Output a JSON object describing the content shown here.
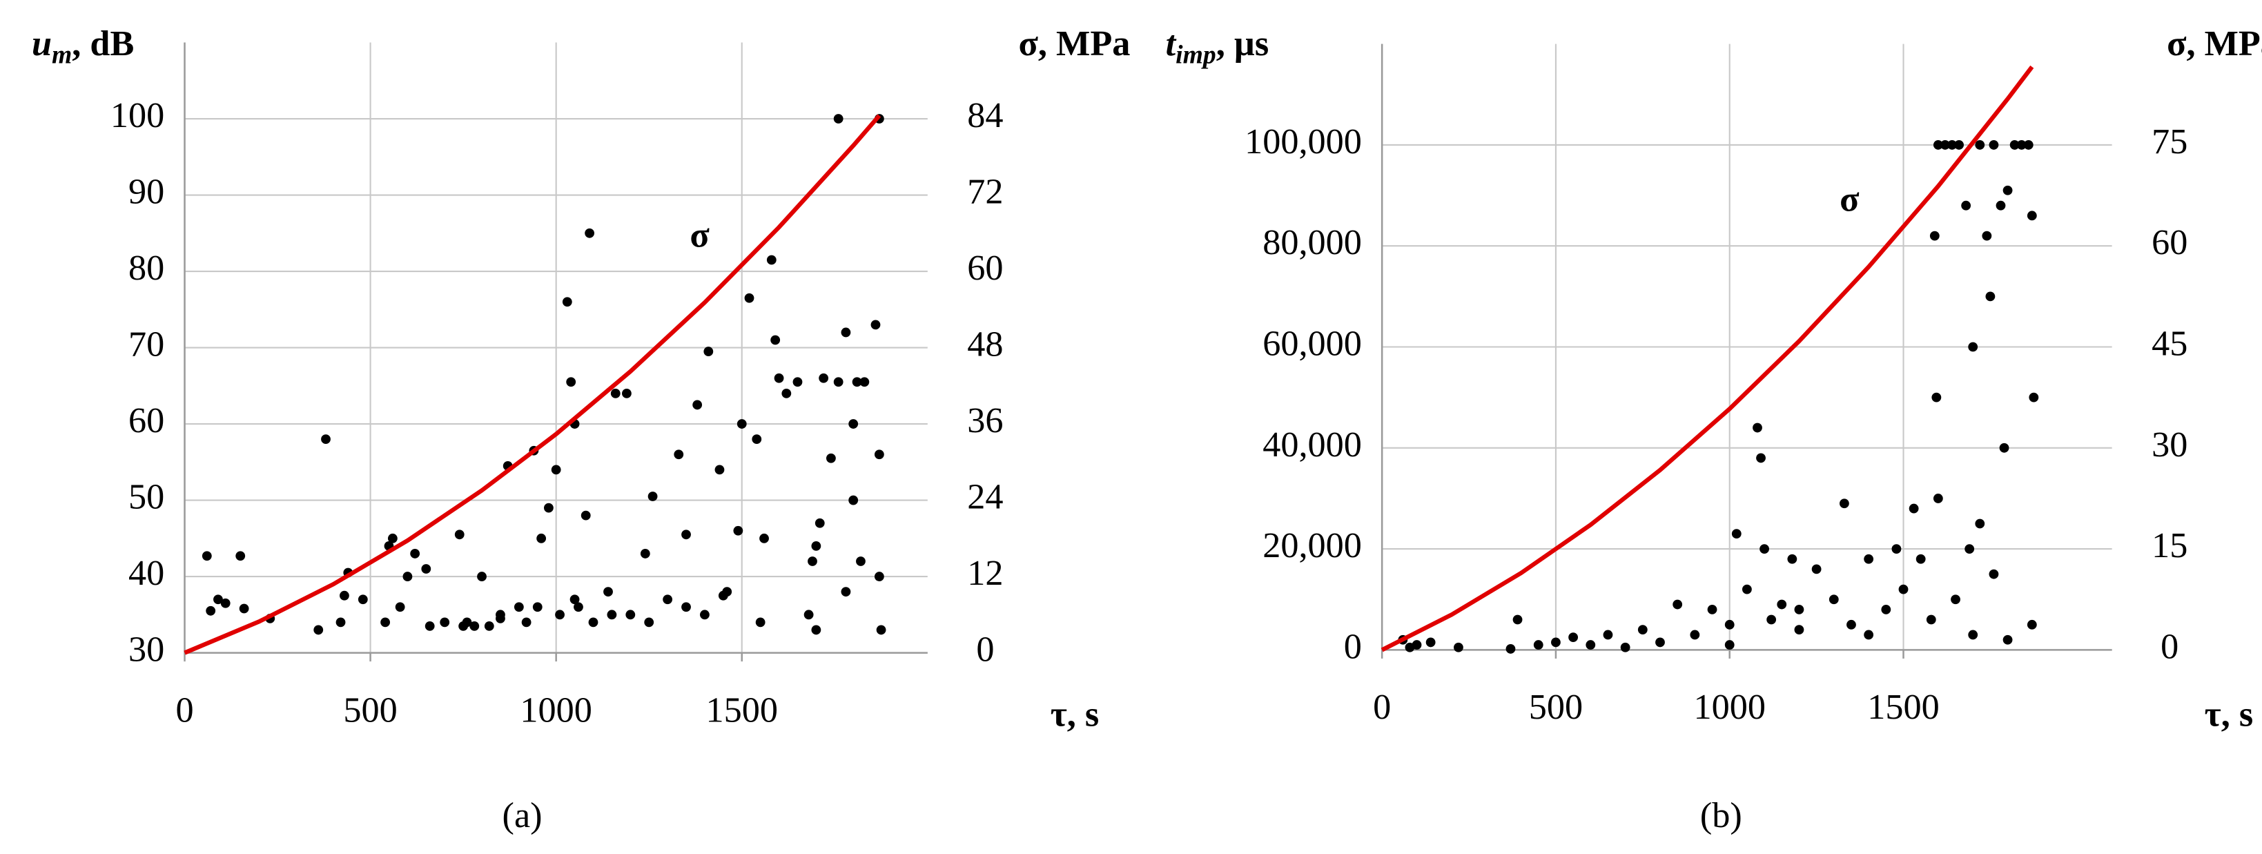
{
  "chart_data": [
    {
      "type": "scatter",
      "caption": "(a)",
      "ylabel": {
        "text": "u",
        "subscript": "m",
        "unit": ", dB"
      },
      "y2label": "σ, MPa",
      "xlabel": "τ, s",
      "xlim": [
        0,
        2000
      ],
      "xticks": [
        0,
        500,
        1000,
        1500
      ],
      "ylim": [
        30,
        110
      ],
      "yticks": [
        30,
        40,
        50,
        60,
        70,
        80,
        90,
        100
      ],
      "y2lim": [
        0,
        96
      ],
      "y2ticks": [
        0,
        12,
        24,
        36,
        48,
        60,
        72,
        84
      ],
      "grid": true,
      "series": [
        {
          "type": "scatter",
          "color": "#000000",
          "x": [
            60,
            70,
            90,
            110,
            150,
            160,
            230,
            360,
            380,
            420,
            430,
            440,
            480,
            540,
            550,
            560,
            580,
            600,
            620,
            650,
            660,
            700,
            740,
            760,
            780,
            800,
            820,
            850,
            870,
            900,
            920,
            940,
            960,
            980,
            1000,
            1010,
            1030,
            1040,
            1050,
            1060,
            1080,
            1090,
            1100,
            1140,
            1160,
            1190,
            1200,
            1240,
            1260,
            1300,
            1330,
            1350,
            1380,
            1400,
            1410,
            1440,
            1460,
            1490,
            1500,
            1520,
            1540,
            1560,
            1580,
            1590,
            1600,
            1620,
            1650,
            1680,
            1690,
            1700,
            1720,
            1740,
            1760,
            1780,
            1800,
            1810,
            1830,
            1860,
            1870,
            1870,
            1875,
            1760,
            1870,
            750,
            850,
            950,
            1050,
            1150,
            1250,
            1350,
            1450,
            1550,
            1700,
            1710,
            1780,
            1800,
            1820
          ],
          "values": [
            42.7,
            35.5,
            37,
            36.5,
            42.7,
            35.8,
            34.5,
            33,
            58,
            34,
            37.5,
            40.5,
            37,
            34,
            44,
            45,
            36,
            40,
            43,
            41,
            33.5,
            34,
            45.5,
            34,
            33.5,
            40,
            33.5,
            35,
            54.5,
            36,
            34,
            56.5,
            45,
            49,
            54,
            35,
            76,
            65.5,
            60,
            36,
            48,
            85,
            34,
            38,
            64,
            64,
            35,
            43,
            50.5,
            37,
            56,
            45.5,
            62.5,
            35,
            69.5,
            54,
            38,
            46,
            60,
            76.5,
            58,
            45,
            81.5,
            71,
            66,
            64,
            65.5,
            35,
            42,
            44,
            66,
            55.5,
            65.5,
            72,
            60,
            65.5,
            65.5,
            73,
            56,
            40,
            33,
            100,
            100,
            33.5,
            34.5,
            36,
            37,
            35,
            34,
            36,
            37.5,
            34,
            33,
            47,
            38,
            50,
            42
          ]
        },
        {
          "type": "line",
          "name": "σ",
          "axis": "y2",
          "color": "#e00000",
          "x": [
            0,
            200,
            400,
            600,
            800,
            1000,
            1200,
            1400,
            1600,
            1800,
            1870
          ],
          "values": [
            0,
            4.9,
            10.78,
            17.66,
            25.54,
            34.4,
            44.26,
            55.1,
            66.94,
            79.78,
            84.5
          ]
        }
      ]
    },
    {
      "type": "scatter",
      "caption": "(b)",
      "ylabel": {
        "text": "t",
        "subscript": "imp",
        "unit": ", µs"
      },
      "y2label": "σ, MPa",
      "xlabel": "τ, s",
      "xlim": [
        0,
        2100
      ],
      "xticks": [
        0,
        500,
        1000,
        1500
      ],
      "ylim": [
        0,
        120000
      ],
      "yticks": [
        0,
        {
          "value": 20000,
          "label": "20,000"
        },
        {
          "value": 40000,
          "label": "40,000"
        },
        {
          "value": 60000,
          "label": "60,000"
        },
        {
          "value": 80000,
          "label": "80,000"
        },
        {
          "value": 100000,
          "label": "100,000"
        }
      ],
      "y2lim": [
        0,
        90
      ],
      "y2ticks": [
        0,
        15,
        30,
        45,
        60,
        75
      ],
      "grid": true,
      "series": [
        {
          "type": "scatter",
          "color": "#000000",
          "x": [
            60,
            80,
            100,
            140,
            220,
            370,
            390,
            450,
            500,
            550,
            600,
            650,
            700,
            750,
            800,
            850,
            900,
            950,
            1000,
            1020,
            1050,
            1080,
            1090,
            1100,
            1120,
            1150,
            1180,
            1200,
            1250,
            1300,
            1330,
            1350,
            1400,
            1450,
            1480,
            1500,
            1530,
            1550,
            1580,
            1590,
            1595,
            1600,
            1620,
            1640,
            1660,
            1680,
            1690,
            1700,
            1720,
            1740,
            1750,
            1760,
            1780,
            1790,
            1800,
            1820,
            1840,
            1860,
            1870,
            1875,
            1870,
            1600,
            1650,
            1720,
            1760,
            1800,
            1700,
            1200,
            1400,
            1000
          ],
          "values": [
            2000,
            500,
            1000,
            1500,
            500,
            200,
            6000,
            1000,
            1500,
            2500,
            1000,
            3000,
            500,
            4000,
            1500,
            9000,
            3000,
            8000,
            5000,
            23000,
            12000,
            44000,
            38000,
            20000,
            6000,
            9000,
            18000,
            4000,
            16000,
            10000,
            29000,
            5000,
            18000,
            8000,
            20000,
            12000,
            28000,
            18000,
            6000,
            82000,
            50000,
            100000,
            100000,
            100000,
            100000,
            88000,
            20000,
            60000,
            100000,
            82000,
            70000,
            100000,
            88000,
            40000,
            91000,
            100000,
            100000,
            100000,
            86000,
            50000,
            5000,
            30000,
            10000,
            25000,
            15000,
            2000,
            3000,
            8000,
            3000,
            1000
          ]
        },
        {
          "type": "line",
          "name": "σ",
          "axis": "y2",
          "color": "#e00000",
          "x": [
            0,
            200,
            400,
            600,
            800,
            1000,
            1200,
            1400,
            1600,
            1800,
            1870
          ],
          "values": [
            0,
            5.23,
            11.42,
            18.58,
            26.71,
            35.8,
            45.86,
            56.89,
            68.87,
            81.84,
            86.6
          ]
        }
      ]
    }
  ]
}
